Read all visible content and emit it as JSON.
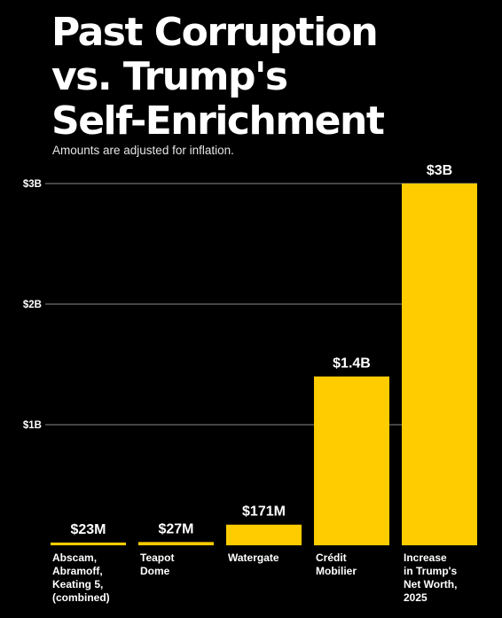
{
  "header": {
    "title_lines": [
      "Past Corruption",
      "vs. Trump's",
      "Self-Enrichment"
    ],
    "subtitle": "Amounts are adjusted for inflation."
  },
  "colors": {
    "background": "#000000",
    "bar": "#FFCC00",
    "text": "#FFFFFF",
    "grid": "#8A8A8A"
  },
  "chart_data": {
    "type": "bar",
    "title": "Past Corruption vs. Trump's Self-Enrichment",
    "subtitle": "Amounts are adjusted for inflation.",
    "categories": [
      [
        "Abscam,",
        "Abramoff,",
        "Keating 5,",
        "(combined)"
      ],
      [
        "Teapot",
        "Dome"
      ],
      [
        "Watergate"
      ],
      [
        "Crédit",
        "Mobilier"
      ],
      [
        "Increase",
        "in Trump's",
        "Net Worth,",
        "2025"
      ]
    ],
    "values": [
      23000000,
      27000000,
      171000000,
      1400000000,
      3000000000
    ],
    "data_labels": [
      "$23M",
      "$27M",
      "$171M",
      "$1.4B",
      "$3B"
    ],
    "ylim": [
      0,
      3000000000
    ],
    "yticks": [
      1000000000,
      2000000000,
      3000000000
    ],
    "ytick_labels": [
      "$1B",
      "$2B",
      "$3B"
    ],
    "xlabel": "",
    "ylabel": "",
    "grid": true,
    "legend": "none"
  }
}
